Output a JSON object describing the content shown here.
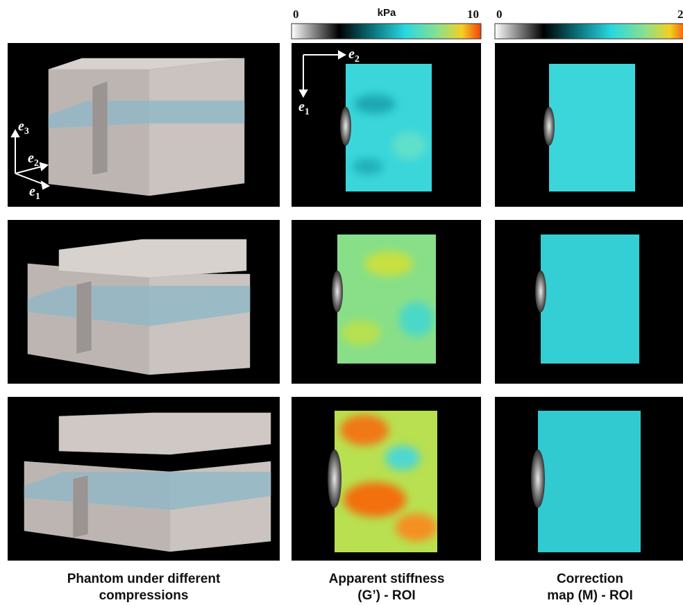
{
  "colorbars": [
    {
      "min": 0,
      "unit": "kPa",
      "max": 10
    },
    {
      "min": 0,
      "max": 2
    }
  ],
  "axes_phantom": {
    "e3": {
      "base": "e",
      "sub": "3"
    },
    "e2": {
      "base": "e",
      "sub": "2"
    },
    "e1": {
      "base": "e",
      "sub": "1"
    }
  },
  "axes_map": {
    "e2": {
      "base": "e",
      "sub": "2"
    },
    "e1": {
      "base": "e",
      "sub": "1"
    }
  },
  "captions": [
    [
      "Phantom under different",
      "compressions"
    ],
    [
      "Apparent stiffness",
      "(G’) - ROI"
    ],
    [
      "Correction",
      "map (M) - ROI"
    ]
  ]
}
